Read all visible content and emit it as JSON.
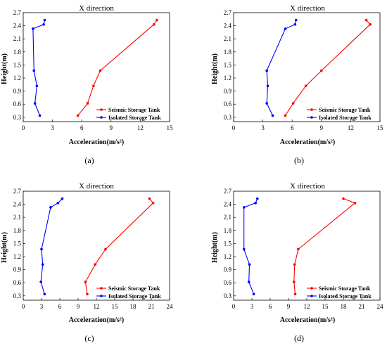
{
  "colors": {
    "seismic": "#ff0000",
    "isolated": "#0000ff"
  },
  "chart_data": [
    {
      "type": "line",
      "title": "X direction",
      "xlabel": "Acceleration(m/s²)",
      "ylabel": "Height(m)",
      "caption": "(a)",
      "xlim": [
        0,
        15
      ],
      "xticks": [
        "0",
        "3",
        "6",
        "9",
        "12",
        "15"
      ],
      "ylim": [
        0.2,
        2.7
      ],
      "yticks": [
        "0.3",
        "0.6",
        "0.9",
        "1.2",
        "1.5",
        "1.8",
        "2.1",
        "2.4",
        "2.7"
      ],
      "legend": "lower-right",
      "series": [
        {
          "name": "Seismic Storage Tank",
          "color": "#ff0000",
          "points": [
            [
              5.6,
              0.34
            ],
            [
              6.6,
              0.62
            ],
            [
              7.2,
              1.02
            ],
            [
              7.9,
              1.37
            ],
            [
              13.4,
              2.43
            ],
            [
              13.7,
              2.53
            ]
          ]
        },
        {
          "name": "Isolated Storage Tank",
          "color": "#0000ff",
          "points": [
            [
              1.7,
              0.34
            ],
            [
              1.2,
              0.62
            ],
            [
              1.4,
              1.02
            ],
            [
              1.1,
              1.37
            ],
            [
              1.0,
              2.33
            ],
            [
              2.1,
              2.43
            ],
            [
              2.2,
              2.53
            ]
          ]
        }
      ]
    },
    {
      "type": "line",
      "title": "X direction",
      "xlabel": "Acceleration(m/s²)",
      "ylabel": "Height(m)",
      "caption": "(b)",
      "xlim": [
        0,
        15
      ],
      "xticks": [
        "0",
        "3",
        "6",
        "9",
        "12",
        "15"
      ],
      "ylim": [
        0.2,
        2.7
      ],
      "yticks": [
        "0.3",
        "0.6",
        "0.9",
        "1.2",
        "1.5",
        "1.8",
        "2.1",
        "2.4",
        "2.7"
      ],
      "legend": "lower-right",
      "series": [
        {
          "name": "Seismic Storage Tank",
          "color": "#ff0000",
          "points": [
            [
              5.3,
              0.34
            ],
            [
              6.1,
              0.62
            ],
            [
              7.4,
              1.02
            ],
            [
              9.0,
              1.37
            ],
            [
              14.0,
              2.43
            ],
            [
              13.6,
              2.53
            ]
          ]
        },
        {
          "name": "Isolated Storage Tank",
          "color": "#0000ff",
          "points": [
            [
              4.0,
              0.34
            ],
            [
              3.4,
              0.62
            ],
            [
              3.5,
              1.02
            ],
            [
              3.4,
              1.37
            ],
            [
              5.3,
              2.33
            ],
            [
              6.3,
              2.43
            ],
            [
              6.4,
              2.53
            ]
          ]
        }
      ]
    },
    {
      "type": "line",
      "title": "X direction",
      "xlabel": "Acceleration(m/s²)",
      "ylabel": "Height(m)",
      "caption": "(c)",
      "xlim": [
        0,
        24
      ],
      "xticks": [
        "0",
        "3",
        "6",
        "9",
        "12",
        "15",
        "18",
        "21",
        "24"
      ],
      "ylim": [
        0.2,
        2.7
      ],
      "yticks": [
        "0.3",
        "0.6",
        "0.9",
        "1.2",
        "1.5",
        "1.8",
        "2.1",
        "2.4",
        "2.7"
      ],
      "legend": "lower-right",
      "series": [
        {
          "name": "Seismic Storage Tank",
          "color": "#ff0000",
          "points": [
            [
              10.5,
              0.34
            ],
            [
              10.2,
              0.62
            ],
            [
              11.8,
              1.02
            ],
            [
              13.5,
              1.37
            ],
            [
              21.3,
              2.43
            ],
            [
              20.7,
              2.53
            ]
          ]
        },
        {
          "name": "Isolated Storage Tank",
          "color": "#0000ff",
          "points": [
            [
              3.5,
              0.34
            ],
            [
              2.9,
              0.62
            ],
            [
              3.2,
              1.02
            ],
            [
              3.0,
              1.37
            ],
            [
              4.5,
              2.33
            ],
            [
              5.7,
              2.43
            ],
            [
              6.4,
              2.53
            ]
          ]
        }
      ]
    },
    {
      "type": "line",
      "title": "X direction",
      "xlabel": "Acceleration(m/s²)",
      "ylabel": "Height(m)",
      "caption": "(d)",
      "xlim": [
        0,
        24
      ],
      "xticks": [
        "0",
        "3",
        "6",
        "9",
        "12",
        "15",
        "18",
        "21",
        "24"
      ],
      "ylim": [
        0.2,
        2.7
      ],
      "yticks": [
        "0.3",
        "0.6",
        "0.9",
        "1.2",
        "1.5",
        "1.8",
        "2.1",
        "2.4",
        "2.7"
      ],
      "legend": "lower-right",
      "series": [
        {
          "name": "Seismic Storage Tank",
          "color": "#ff0000",
          "points": [
            [
              10.1,
              0.34
            ],
            [
              9.9,
              0.62
            ],
            [
              10.0,
              1.02
            ],
            [
              10.6,
              1.37
            ],
            [
              19.9,
              2.43
            ],
            [
              18.0,
              2.53
            ]
          ]
        },
        {
          "name": "Isolated Storage Tank",
          "color": "#0000ff",
          "points": [
            [
              3.3,
              0.34
            ],
            [
              2.5,
              0.62
            ],
            [
              2.6,
              1.02
            ],
            [
              1.7,
              1.37
            ],
            [
              1.7,
              2.33
            ],
            [
              3.6,
              2.43
            ],
            [
              3.9,
              2.53
            ]
          ]
        }
      ]
    }
  ]
}
